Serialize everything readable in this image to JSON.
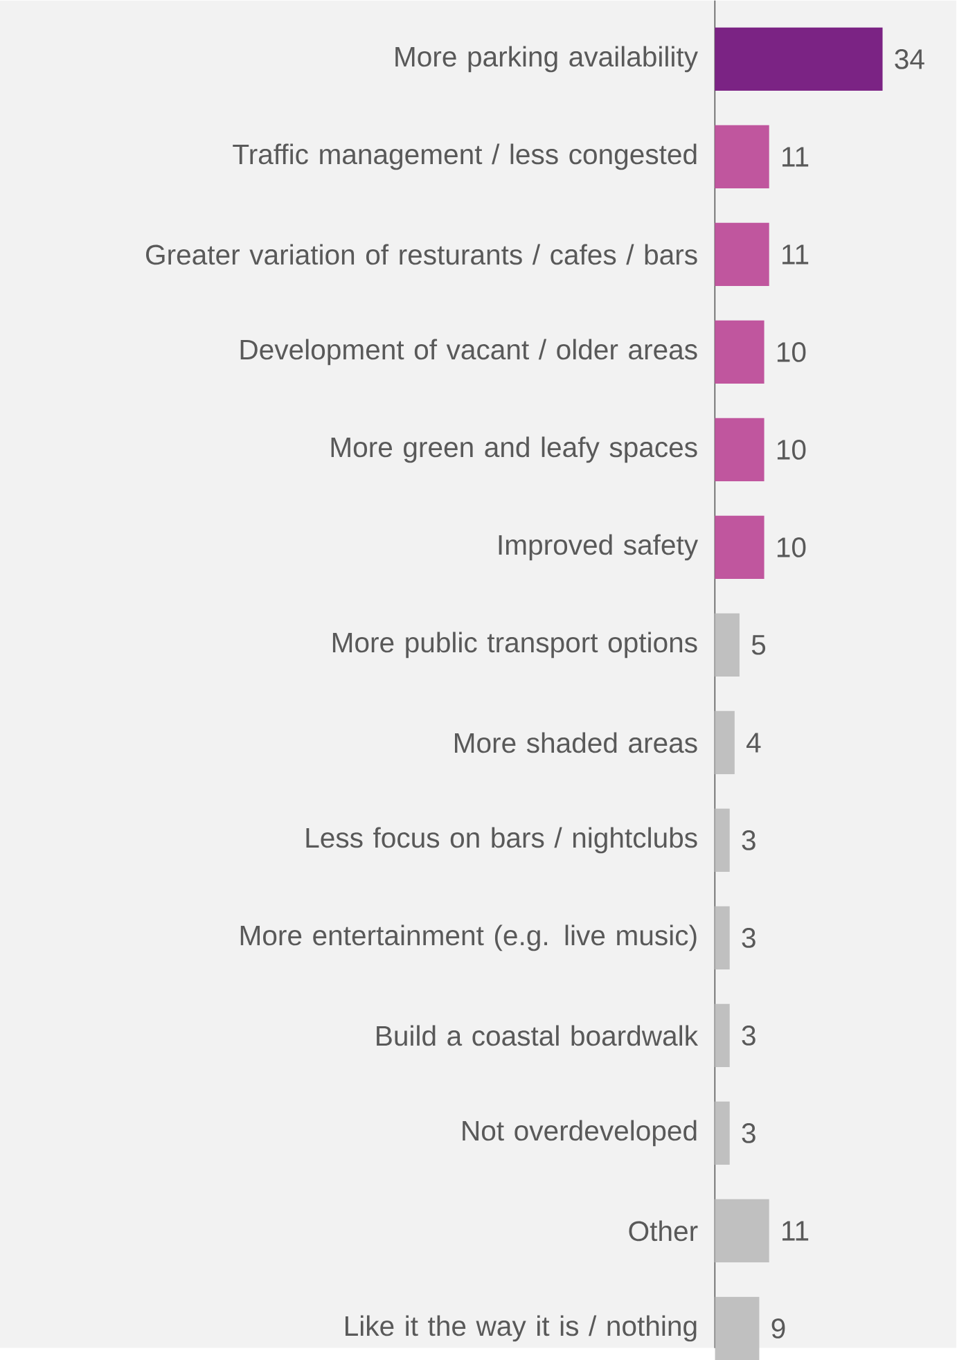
{
  "chart_data": {
    "type": "bar",
    "orientation": "horizontal",
    "data_labels": true,
    "categories": [
      "More parking availability",
      "Traffic management / less congested",
      "Greater variation of resturants / cafes / bars",
      "Development of vacant / older areas",
      "More green and leafy spaces",
      "Improved safety",
      "More public transport options",
      "More shaded areas",
      "Less focus on bars / nightclubs",
      "More entertainment (e.g. live music)",
      "Build a coastal boardwalk",
      "Not overdeveloped",
      "Other",
      "Like it the way it is / nothing"
    ],
    "values": [
      34,
      11,
      11,
      10,
      10,
      10,
      5,
      4,
      3,
      3,
      3,
      3,
      11,
      9
    ],
    "colors": [
      "#7b2384",
      "#c0569e",
      "#c0569e",
      "#c0569e",
      "#c0569e",
      "#c0569e",
      "#c0c0c0",
      "#c0c0c0",
      "#c0c0c0",
      "#c0c0c0",
      "#c0c0c0",
      "#c0c0c0",
      "#c0c0c0",
      "#c0c0c0"
    ]
  }
}
